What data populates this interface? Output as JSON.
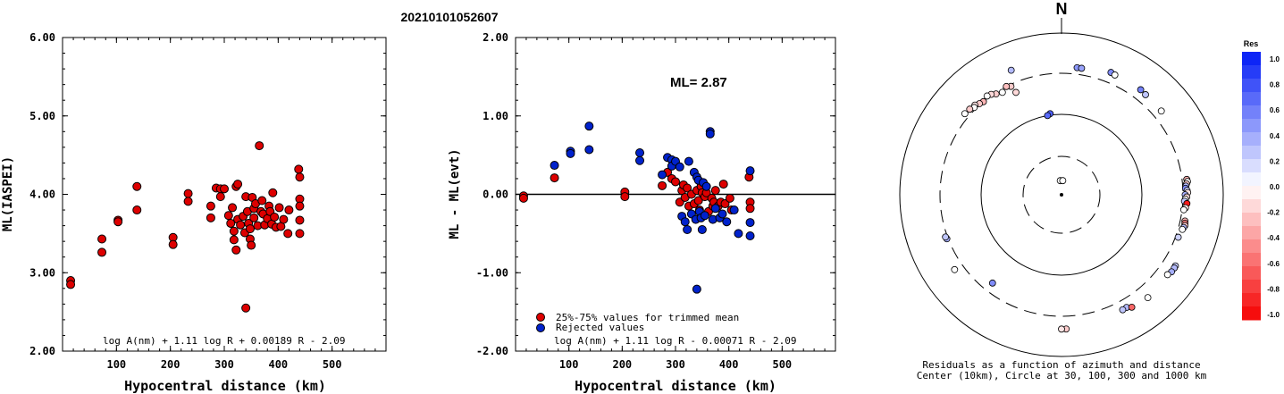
{
  "title": "20210101052607",
  "chart_data": [
    {
      "type": "scatter",
      "title": "",
      "xlabel": "Hypocentral distance (km)",
      "ylabel": "ML(IASPEI)",
      "xlim": [
        0,
        600
      ],
      "ylim": [
        2.0,
        6.0
      ],
      "xticks": [
        "100",
        "200",
        "300",
        "400",
        "500"
      ],
      "yticks": [
        "2.00",
        "3.00",
        "4.00",
        "5.00",
        "6.00"
      ],
      "annotation": "log A(nm) + 1.11 log R + 0.00189 R - 2.09",
      "series": [
        {
          "color": "#dd0000",
          "points": [
            [
              15,
              2.9
            ],
            [
              15,
              2.85
            ],
            [
              73,
              3.43
            ],
            [
              73,
              3.26
            ],
            [
              103,
              3.67
            ],
            [
              103,
              3.65
            ],
            [
              138,
              4.1
            ],
            [
              138,
              3.8
            ],
            [
              205,
              3.45
            ],
            [
              205,
              3.36
            ],
            [
              233,
              4.01
            ],
            [
              233,
              3.91
            ],
            [
              275,
              3.85
            ],
            [
              275,
              3.7
            ],
            [
              285,
              4.08
            ],
            [
              293,
              4.07
            ],
            [
              293,
              3.97
            ],
            [
              300,
              4.07
            ],
            [
              308,
              3.73
            ],
            [
              312,
              3.63
            ],
            [
              315,
              3.83
            ],
            [
              318,
              3.53
            ],
            [
              318,
              3.42
            ],
            [
              322,
              3.29
            ],
            [
              322,
              4.1
            ],
            [
              325,
              4.13
            ],
            [
              325,
              3.68
            ],
            [
              330,
              3.61
            ],
            [
              335,
              3.72
            ],
            [
              338,
              3.51
            ],
            [
              340,
              3.97
            ],
            [
              340,
              2.55
            ],
            [
              343,
              3.78
            ],
            [
              345,
              3.63
            ],
            [
              348,
              3.43
            ],
            [
              348,
              3.56
            ],
            [
              350,
              3.35
            ],
            [
              352,
              3.96
            ],
            [
              355,
              3.82
            ],
            [
              355,
              3.7
            ],
            [
              358,
              3.88
            ],
            [
              362,
              3.6
            ],
            [
              365,
              4.62
            ],
            [
              368,
              3.78
            ],
            [
              370,
              3.92
            ],
            [
              372,
              3.75
            ],
            [
              375,
              3.61
            ],
            [
              380,
              3.69
            ],
            [
              383,
              3.85
            ],
            [
              385,
              3.78
            ],
            [
              388,
              3.62
            ],
            [
              390,
              4.02
            ],
            [
              393,
              3.71
            ],
            [
              396,
              3.58
            ],
            [
              402,
              3.83
            ],
            [
              405,
              3.59
            ],
            [
              410,
              3.68
            ],
            [
              418,
              3.5
            ],
            [
              420,
              3.8
            ],
            [
              438,
              4.32
            ],
            [
              440,
              4.22
            ],
            [
              440,
              3.94
            ],
            [
              440,
              3.85
            ],
            [
              440,
              3.67
            ],
            [
              440,
              3.5
            ]
          ]
        }
      ]
    },
    {
      "type": "scatter",
      "title": "",
      "xlabel": "Hypocentral distance (km)",
      "ylabel": "ML - ML(evt)",
      "xlim": [
        0,
        600
      ],
      "ylim": [
        -2.0,
        2.0
      ],
      "xticks": [
        "100",
        "200",
        "300",
        "400",
        "500"
      ],
      "yticks": [
        "-2.00",
        "-1.00",
        "0.00",
        "1.00",
        "2.00"
      ],
      "ml_label": "ML= 2.87",
      "annotation": "log A(nm) + 1.11 log R - 0.00071 R - 2.09",
      "legend": [
        {
          "label": "25%-75% values for trimmed mean",
          "color": "#dd0000"
        },
        {
          "label": "Rejected values",
          "color": "#0022cc"
        }
      ],
      "series": [
        {
          "name": "25%-75% values for trimmed mean",
          "color": "#dd0000",
          "points": [
            [
              15,
              -0.02
            ],
            [
              15,
              -0.05
            ],
            [
              73,
              0.21
            ],
            [
              205,
              0.03
            ],
            [
              205,
              -0.03
            ],
            [
              275,
              0.11
            ],
            [
              285,
              0.28
            ],
            [
              293,
              0.2
            ],
            [
              300,
              0.16
            ],
            [
              308,
              -0.1
            ],
            [
              312,
              0.05
            ],
            [
              315,
              0.12
            ],
            [
              318,
              -0.04
            ],
            [
              322,
              0.08
            ],
            [
              325,
              -0.15
            ],
            [
              330,
              0.0
            ],
            [
              335,
              -0.12
            ],
            [
              340,
              0.05
            ],
            [
              343,
              -0.08
            ],
            [
              345,
              -0.2
            ],
            [
              348,
              0.1
            ],
            [
              350,
              0.02
            ],
            [
              355,
              -0.03
            ],
            [
              358,
              0.02
            ],
            [
              362,
              -0.22
            ],
            [
              368,
              -0.05
            ],
            [
              370,
              -0.15
            ],
            [
              372,
              -0.1
            ],
            [
              375,
              0.05
            ],
            [
              380,
              -0.15
            ],
            [
              385,
              -0.1
            ],
            [
              390,
              0.13
            ],
            [
              393,
              -0.12
            ],
            [
              402,
              -0.05
            ],
            [
              405,
              -0.2
            ],
            [
              438,
              0.22
            ],
            [
              440,
              -0.1
            ],
            [
              440,
              -0.18
            ]
          ]
        },
        {
          "name": "Rejected values",
          "color": "#0022cc",
          "points": [
            [
              73,
              0.37
            ],
            [
              103,
              0.55
            ],
            [
              103,
              0.52
            ],
            [
              138,
              0.87
            ],
            [
              138,
              0.57
            ],
            [
              233,
              0.53
            ],
            [
              233,
              0.43
            ],
            [
              275,
              0.25
            ],
            [
              285,
              0.47
            ],
            [
              293,
              0.44
            ],
            [
              293,
              0.36
            ],
            [
              300,
              0.42
            ],
            [
              308,
              0.35
            ],
            [
              312,
              -0.28
            ],
            [
              318,
              -0.35
            ],
            [
              322,
              -0.45
            ],
            [
              325,
              0.42
            ],
            [
              330,
              -0.25
            ],
            [
              335,
              0.28
            ],
            [
              338,
              -0.32
            ],
            [
              340,
              0.22
            ],
            [
              340,
              -1.21
            ],
            [
              343,
              0.18
            ],
            [
              345,
              -0.22
            ],
            [
              348,
              -0.3
            ],
            [
              350,
              -0.45
            ],
            [
              352,
              0.15
            ],
            [
              355,
              -0.27
            ],
            [
              358,
              0.1
            ],
            [
              365,
              0.8
            ],
            [
              365,
              0.77
            ],
            [
              370,
              -0.32
            ],
            [
              375,
              -0.18
            ],
            [
              383,
              -0.3
            ],
            [
              388,
              -0.25
            ],
            [
              396,
              -0.35
            ],
            [
              410,
              -0.2
            ],
            [
              418,
              -0.5
            ],
            [
              440,
              0.3
            ],
            [
              440,
              -0.36
            ],
            [
              440,
              -0.53
            ]
          ]
        }
      ]
    },
    {
      "type": "scatter",
      "title": "",
      "caption_line1": "Residuals as a function of azimuth and distance",
      "caption_line2": "Center (10km), Circle at 30, 100, 300 and 1000 km",
      "north_label": "N",
      "points": [
        {
          "az": 336,
          "dist": 233,
          "res": -0.15
        },
        {
          "az": 335,
          "dist": 285,
          "res": -0.2
        },
        {
          "az": 333,
          "dist": 300,
          "res": -0.25
        },
        {
          "az": 330,
          "dist": 275,
          "res": 0.0
        },
        {
          "az": 327,
          "dist": 290,
          "res": -0.2
        },
        {
          "az": 325,
          "dist": 310,
          "res": -0.15
        },
        {
          "az": 323,
          "dist": 320,
          "res": 0.0
        },
        {
          "az": 320,
          "dist": 300,
          "res": -0.3
        },
        {
          "az": 318,
          "dist": 310,
          "res": -0.2
        },
        {
          "az": 316,
          "dist": 330,
          "res": -0.1
        },
        {
          "az": 315,
          "dist": 318,
          "res": 0.0
        },
        {
          "az": 313,
          "dist": 338,
          "res": -0.2
        },
        {
          "az": 310,
          "dist": 345,
          "res": 0.0
        },
        {
          "az": 338,
          "dist": 440,
          "res": 0.3
        },
        {
          "az": 352,
          "dist": 104,
          "res": 0.7
        },
        {
          "az": 350,
          "dist": 100,
          "res": 0.65
        },
        {
          "az": 7,
          "dist": 365,
          "res": 0.45
        },
        {
          "az": 9,
          "dist": 365,
          "res": 0.4
        },
        {
          "az": 22,
          "dist": 410,
          "res": 0.5
        },
        {
          "az": 24,
          "dist": 400,
          "res": 0.0
        },
        {
          "az": 37,
          "dist": 405,
          "res": 0.55
        },
        {
          "az": 40,
          "dist": 395,
          "res": 0.25
        },
        {
          "az": 50,
          "dist": 390,
          "res": 0.0
        },
        {
          "az": 83,
          "dist": 345,
          "res": -0.3
        },
        {
          "az": 84,
          "dist": 350,
          "res": 0.0
        },
        {
          "az": 85,
          "dist": 338,
          "res": -0.2
        },
        {
          "az": 86,
          "dist": 330,
          "res": 0.3
        },
        {
          "az": 87,
          "dist": 325,
          "res": 0.5
        },
        {
          "az": 88,
          "dist": 340,
          "res": 0.2
        },
        {
          "az": 89,
          "dist": 345,
          "res": -0.1
        },
        {
          "az": 90,
          "dist": 320,
          "res": 0.35
        },
        {
          "az": 91,
          "dist": 335,
          "res": -0.15
        },
        {
          "az": 92,
          "dist": 322,
          "res": 0.0
        },
        {
          "az": 93,
          "dist": 315,
          "res": 0.25
        },
        {
          "az": 94,
          "dist": 340,
          "res": -0.9
        },
        {
          "az": 96,
          "dist": 330,
          "res": -0.1
        },
        {
          "az": 97,
          "dist": 315,
          "res": 0.0
        },
        {
          "az": 102,
          "dist": 345,
          "res": -0.3
        },
        {
          "az": 103,
          "dist": 350,
          "res": -0.5
        },
        {
          "az": 104,
          "dist": 355,
          "res": -0.2
        },
        {
          "az": 105,
          "dist": 348,
          "res": 0.3
        },
        {
          "az": 106,
          "dist": 340,
          "res": 0.0
        },
        {
          "az": 110,
          "dist": 325,
          "res": 0.2
        },
        {
          "az": 122,
          "dist": 440,
          "res": 0.2
        },
        {
          "az": 123,
          "dist": 442,
          "res": 0.3
        },
        {
          "az": 125,
          "dist": 440,
          "res": 0.35
        },
        {
          "az": 127,
          "dist": 420,
          "res": 0.0
        },
        {
          "az": 140,
          "dist": 440,
          "res": 0.0
        },
        {
          "az": 150,
          "dist": 388,
          "res": 0.3
        },
        {
          "az": 152,
          "dist": 390,
          "res": 0.25
        },
        {
          "az": 148,
          "dist": 418,
          "res": -0.6
        },
        {
          "az": 178,
          "dist": 440,
          "res": -0.2
        },
        {
          "az": 180,
          "dist": 440,
          "res": -0.1
        },
        {
          "az": 218,
          "dist": 233,
          "res": 0.5
        },
        {
          "az": 235,
          "dist": 393,
          "res": 0.0
        },
        {
          "az": 249,
          "dist": 312,
          "res": 0.35
        },
        {
          "az": 250,
          "dist": 318,
          "res": 0.25
        },
        {
          "az": 355,
          "dist": 15,
          "res": 0.0
        },
        {
          "az": 5,
          "dist": 15,
          "res": 0.0
        }
      ]
    }
  ],
  "colorbar": {
    "title": "Res",
    "labels": [
      "1.0",
      "0.8",
      "0.6",
      "0.4",
      "0.2",
      "0.0",
      "-0.2",
      "-0.4",
      "-0.6",
      "-0.8",
      "-1.0"
    ]
  }
}
